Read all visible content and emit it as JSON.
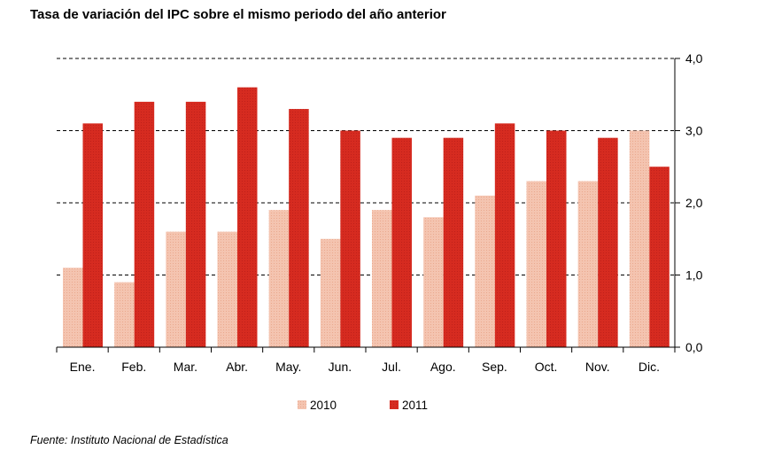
{
  "chart_data": {
    "type": "bar",
    "title": "Tasa de variación del IPC sobre el mismo periodo del año anterior",
    "categories": [
      "Ene.",
      "Feb.",
      "Mar.",
      "Abr.",
      "May.",
      "Jun.",
      "Jul.",
      "Ago.",
      "Sep.",
      "Oct.",
      "Nov.",
      "Dic."
    ],
    "series": [
      {
        "name": "2010",
        "values": [
          1.1,
          0.9,
          1.6,
          1.6,
          1.9,
          1.5,
          1.9,
          1.8,
          2.1,
          2.3,
          2.3,
          3.0
        ],
        "color": "#f4c2ae"
      },
      {
        "name": "2011",
        "values": [
          3.1,
          3.4,
          3.4,
          3.6,
          3.3,
          3.0,
          2.9,
          2.9,
          3.1,
          3.0,
          2.9,
          2.5
        ],
        "color": "#d52b20"
      }
    ],
    "ylim": [
      0,
      4
    ],
    "yticks": [
      "0,0",
      "1,0",
      "2,0",
      "3,0",
      "4,0"
    ],
    "yaxis_position": "right",
    "grid": "dashed horizontal",
    "legend_position": "bottom-center",
    "source": "Fuente: Instituto Nacional de Estadística"
  }
}
